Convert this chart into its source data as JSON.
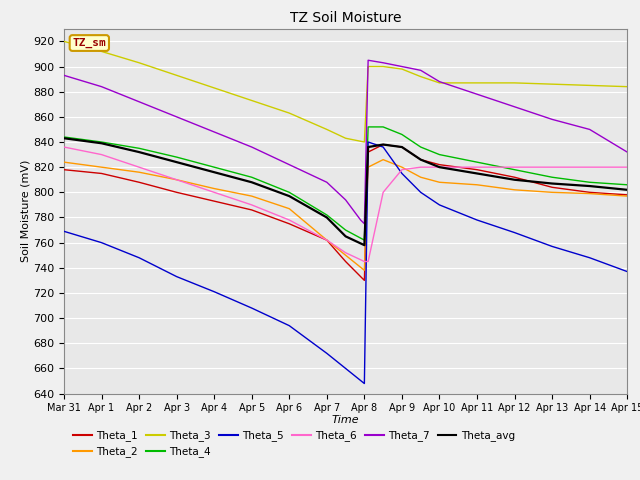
{
  "title": "TZ Soil Moisture",
  "xlabel": "Time",
  "ylabel": "Soil Moisture (mV)",
  "ylim": [
    640,
    930
  ],
  "background_color": "#e8e8e8",
  "grid_color": "#ffffff",
  "label_box_text": "TZ_sm",
  "label_box_facecolor": "#ffffcc",
  "label_box_edgecolor": "#cc9900",
  "label_box_textcolor": "#990000",
  "x_tick_labels": [
    "Mar 31",
    "Apr 1",
    "Apr 2",
    "Apr 3",
    "Apr 4",
    "Apr 5",
    "Apr 6",
    "Apr 7",
    "Apr 8",
    "Apr 9",
    "Apr 10",
    "Apr 11",
    "Apr 12",
    "Apr 13",
    "Apr 14",
    "Apr 15"
  ],
  "fig_width": 6.4,
  "fig_height": 4.8,
  "series": {
    "Theta_1": {
      "color": "#cc0000",
      "linewidth": 1.0,
      "data_x": [
        0,
        1,
        2,
        3,
        4,
        5,
        6,
        7,
        7.5,
        8,
        8.1,
        8.5,
        9,
        9.5,
        10,
        11,
        12,
        13,
        14,
        15
      ],
      "data_y": [
        818,
        815,
        808,
        800,
        793,
        786,
        775,
        762,
        745,
        730,
        832,
        838,
        836,
        826,
        822,
        818,
        812,
        804,
        800,
        798
      ]
    },
    "Theta_2": {
      "color": "#ff9900",
      "linewidth": 1.0,
      "data_x": [
        0,
        1,
        2,
        3,
        4,
        5,
        6,
        7,
        7.5,
        8,
        8.1,
        8.5,
        9,
        9.5,
        10,
        11,
        12,
        13,
        14,
        15
      ],
      "data_y": [
        824,
        820,
        816,
        810,
        803,
        797,
        787,
        762,
        750,
        738,
        820,
        826,
        820,
        812,
        808,
        806,
        802,
        800,
        799,
        797
      ]
    },
    "Theta_3": {
      "color": "#cccc00",
      "linewidth": 1.0,
      "data_x": [
        0,
        1,
        2,
        3,
        4,
        5,
        6,
        7,
        7.5,
        8,
        8.1,
        8.5,
        9,
        9.5,
        10,
        11,
        12,
        13,
        14,
        15
      ],
      "data_y": [
        920,
        912,
        903,
        893,
        883,
        873,
        863,
        850,
        843,
        840,
        900,
        900,
        898,
        892,
        887,
        887,
        887,
        886,
        885,
        884
      ]
    },
    "Theta_4": {
      "color": "#00bb00",
      "linewidth": 1.0,
      "data_x": [
        0,
        1,
        2,
        3,
        4,
        5,
        6,
        7,
        7.5,
        8,
        8.1,
        8.5,
        9,
        9.5,
        10,
        11,
        12,
        13,
        14,
        15
      ],
      "data_y": [
        844,
        840,
        835,
        828,
        820,
        812,
        800,
        782,
        770,
        762,
        852,
        852,
        846,
        836,
        830,
        824,
        818,
        812,
        808,
        806
      ]
    },
    "Theta_5": {
      "color": "#0000cc",
      "linewidth": 1.0,
      "data_x": [
        0,
        1,
        2,
        3,
        4,
        5,
        6,
        7,
        7.5,
        8,
        8.1,
        8.5,
        9,
        9.5,
        10,
        11,
        12,
        13,
        14,
        15
      ],
      "data_y": [
        769,
        760,
        748,
        733,
        721,
        708,
        694,
        672,
        660,
        648,
        840,
        836,
        815,
        800,
        790,
        778,
        768,
        757,
        748,
        737
      ]
    },
    "Theta_6": {
      "color": "#ff66cc",
      "linewidth": 1.0,
      "data_x": [
        0,
        1,
        2,
        3,
        4,
        5,
        6,
        7,
        7.5,
        8,
        8.1,
        8.5,
        9,
        9.5,
        10,
        11,
        12,
        13,
        14,
        15
      ],
      "data_y": [
        836,
        830,
        820,
        810,
        800,
        790,
        778,
        762,
        752,
        745,
        745,
        800,
        818,
        820,
        820,
        820,
        820,
        820,
        820,
        820
      ]
    },
    "Theta_7": {
      "color": "#9900cc",
      "linewidth": 1.0,
      "data_x": [
        0,
        1,
        2,
        3,
        4,
        5,
        6,
        7,
        7.5,
        7.9,
        8.0,
        8.1,
        8.5,
        9,
        9.5,
        10,
        11,
        12,
        13,
        14,
        15
      ],
      "data_y": [
        893,
        884,
        872,
        860,
        848,
        836,
        822,
        808,
        794,
        778,
        775,
        905,
        903,
        900,
        897,
        888,
        878,
        868,
        858,
        850,
        832
      ]
    },
    "Theta_avg": {
      "color": "#000000",
      "linewidth": 1.6,
      "data_x": [
        0,
        1,
        2,
        3,
        4,
        5,
        6,
        7,
        7.5,
        8,
        8.1,
        8.5,
        9,
        9.5,
        10,
        11,
        12,
        13,
        14,
        15
      ],
      "data_y": [
        843,
        839,
        832,
        824,
        816,
        808,
        797,
        780,
        765,
        758,
        836,
        838,
        836,
        826,
        820,
        815,
        810,
        807,
        805,
        802
      ]
    }
  }
}
